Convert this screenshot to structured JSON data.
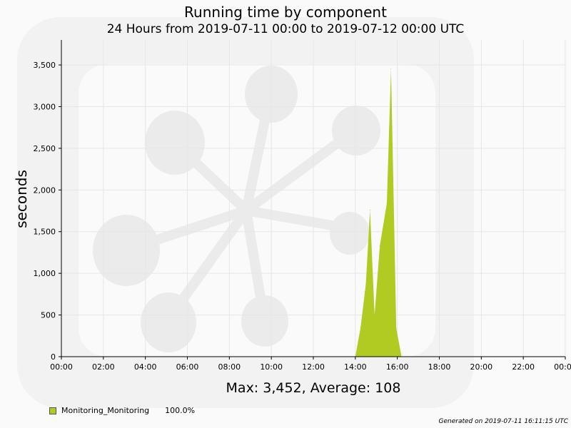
{
  "header": {
    "title": "Running time by component",
    "subtitle": "24 Hours from 2019-07-11 00:00 to 2019-07-12 00:00 UTC"
  },
  "summary": "Max: 3,452, Average: 108",
  "legend": [
    {
      "label": "Monitoring_Monitoring",
      "percent": "100.0%",
      "color": "#b2cb23"
    }
  ],
  "footer": "Generated on 2019-07-11 16:11:15 UTC",
  "chart_data": {
    "type": "area",
    "title": "Running time by component",
    "subtitle": "24 Hours from 2019-07-11 00:00 to 2019-07-12 00:00 UTC",
    "xlabel": "",
    "ylabel": "seconds",
    "xlim": [
      "00:00",
      "24:00"
    ],
    "ylim": [
      0,
      3800
    ],
    "xticks": [
      "00:00",
      "02:00",
      "04:00",
      "06:00",
      "08:00",
      "10:00",
      "12:00",
      "14:00",
      "16:00",
      "18:00",
      "20:00",
      "22:00",
      "00:00"
    ],
    "yticks": [
      0,
      500,
      1000,
      1500,
      2000,
      2500,
      3000,
      3500
    ],
    "ytick_labels": [
      "0",
      "500",
      "1,000",
      "1,500",
      "2,000",
      "2,500",
      "3,000",
      "3,500"
    ],
    "grid": true,
    "legend_position": "bottom-left",
    "series": [
      {
        "name": "Monitoring_Monitoring",
        "color": "#b2cb23",
        "points": [
          [
            "14:00",
            0
          ],
          [
            "14:15",
            350
          ],
          [
            "14:30",
            870
          ],
          [
            "14:42",
            1760
          ],
          [
            "14:55",
            500
          ],
          [
            "15:10",
            1330
          ],
          [
            "15:30",
            1840
          ],
          [
            "15:42",
            3452
          ],
          [
            "15:57",
            340
          ],
          [
            "16:12",
            0
          ]
        ]
      }
    ]
  }
}
